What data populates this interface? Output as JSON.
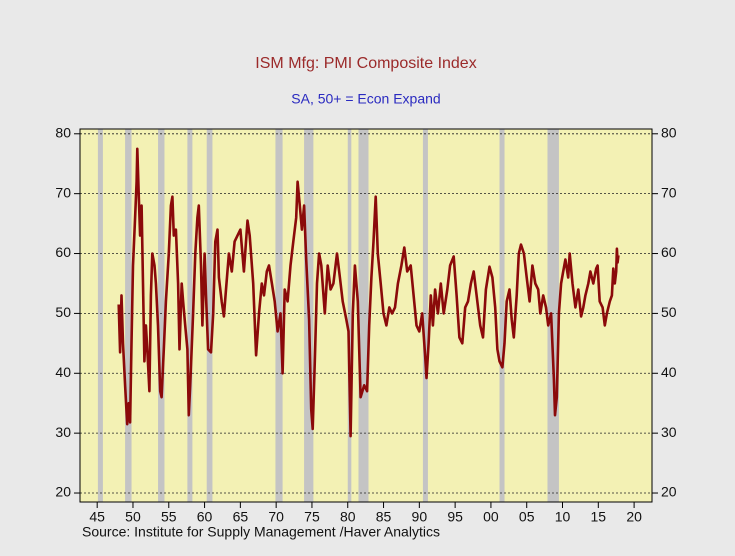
{
  "chart_data": {
    "type": "line",
    "title": "ISM Mfg: PMI Composite Index",
    "subtitle": "SA, 50+ = Econ Expand",
    "source": "Source:     Institute for Supply Management /Haver Analytics",
    "xlim": [
      1942.6,
      2022.5
    ],
    "ylim": [
      18.5,
      80.8
    ],
    "y2lim": [
      18.5,
      80.8
    ],
    "xticks": [
      {
        "value": 1945,
        "label": "45"
      },
      {
        "value": 1950,
        "label": "50"
      },
      {
        "value": 1955,
        "label": "55"
      },
      {
        "value": 1960,
        "label": "60"
      },
      {
        "value": 1965,
        "label": "65"
      },
      {
        "value": 1970,
        "label": "70"
      },
      {
        "value": 1975,
        "label": "75"
      },
      {
        "value": 1980,
        "label": "80"
      },
      {
        "value": 1985,
        "label": "85"
      },
      {
        "value": 1990,
        "label": "90"
      },
      {
        "value": 1995,
        "label": "95"
      },
      {
        "value": 2000,
        "label": "00"
      },
      {
        "value": 2005,
        "label": "05"
      },
      {
        "value": 2010,
        "label": "10"
      },
      {
        "value": 2015,
        "label": "15"
      },
      {
        "value": 2020,
        "label": "20"
      }
    ],
    "yticks": [
      20,
      30,
      40,
      50,
      60,
      70,
      80
    ],
    "y2ticks": [
      20,
      30,
      40,
      50,
      60,
      70,
      80
    ],
    "grid": true,
    "recession_color": "#c4c4c4",
    "recessions": [
      [
        1945.1,
        1945.8
      ],
      [
        1948.9,
        1949.8
      ],
      [
        1953.5,
        1954.4
      ],
      [
        1957.6,
        1958.3
      ],
      [
        1960.3,
        1961.1
      ],
      [
        1969.9,
        1970.9
      ],
      [
        1973.9,
        1975.2
      ],
      [
        1980.0,
        1980.5
      ],
      [
        1981.5,
        1982.9
      ],
      [
        1990.5,
        1991.2
      ],
      [
        2001.2,
        2001.9
      ],
      [
        2007.9,
        2009.5
      ]
    ],
    "series": [
      {
        "name": "PMI Composite Index",
        "color": "#8b0a0a",
        "x": [
          1948.0,
          1948.2,
          1948.4,
          1948.6,
          1948.9,
          1949.2,
          1949.4,
          1949.6,
          1949.8,
          1950.0,
          1950.3,
          1950.5,
          1950.6,
          1950.8,
          1951.0,
          1951.2,
          1951.4,
          1951.6,
          1951.8,
          1952.0,
          1952.3,
          1952.5,
          1952.7,
          1953.0,
          1953.2,
          1953.5,
          1953.8,
          1954.0,
          1954.3,
          1954.6,
          1955.0,
          1955.3,
          1955.5,
          1955.7,
          1956.0,
          1956.3,
          1956.5,
          1956.8,
          1957.0,
          1957.3,
          1957.6,
          1957.8,
          1958.0,
          1958.4,
          1958.7,
          1959.0,
          1959.2,
          1959.5,
          1959.7,
          1960.0,
          1960.2,
          1960.5,
          1960.9,
          1961.2,
          1961.5,
          1961.8,
          1962.0,
          1962.4,
          1962.7,
          1963.0,
          1963.4,
          1963.8,
          1964.2,
          1964.6,
          1965.0,
          1965.5,
          1966.0,
          1966.3,
          1966.8,
          1967.2,
          1967.6,
          1968.0,
          1968.3,
          1968.7,
          1969.0,
          1969.4,
          1969.8,
          1970.2,
          1970.6,
          1970.9,
          1971.2,
          1971.6,
          1972.0,
          1972.4,
          1972.8,
          1973.0,
          1973.3,
          1973.6,
          1973.9,
          1974.2,
          1974.6,
          1974.9,
          1975.1,
          1975.4,
          1975.7,
          1976.0,
          1976.3,
          1976.8,
          1977.2,
          1977.6,
          1978.0,
          1978.5,
          1978.9,
          1979.3,
          1979.8,
          1980.1,
          1980.4,
          1980.7,
          1981.0,
          1981.4,
          1981.8,
          1982.3,
          1982.7,
          1983.0,
          1983.3,
          1983.6,
          1983.9,
          1984.2,
          1984.6,
          1985.0,
          1985.4,
          1985.8,
          1986.2,
          1986.6,
          1987.0,
          1987.5,
          1987.9,
          1988.3,
          1988.8,
          1989.2,
          1989.6,
          1990.0,
          1990.4,
          1990.8,
          1991.0,
          1991.3,
          1991.6,
          1991.9,
          1992.2,
          1992.6,
          1993.0,
          1993.4,
          1993.9,
          1994.3,
          1994.8,
          1995.2,
          1995.6,
          1996.0,
          1996.4,
          1996.8,
          1997.2,
          1997.6,
          1998.0,
          1998.5,
          1998.9,
          1999.3,
          1999.8,
          2000.2,
          2000.6,
          2000.9,
          2001.2,
          2001.6,
          2001.9,
          2002.2,
          2002.6,
          2002.9,
          2003.2,
          2003.6,
          2003.9,
          2004.2,
          2004.6,
          2005.0,
          2005.4,
          2005.8,
          2006.2,
          2006.6,
          2006.9,
          2007.3,
          2007.7,
          2008.0,
          2008.4,
          2008.8,
          2008.95,
          2009.2,
          2009.5,
          2009.8,
          2010.1,
          2010.4,
          2010.8,
          2011.0,
          2011.4,
          2011.8,
          2012.2,
          2012.6,
          2012.9,
          2013.2,
          2013.6,
          2013.9,
          2014.3,
          2014.7,
          2014.9,
          2015.2,
          2015.6,
          2015.9,
          2016.2,
          2016.6,
          2016.9,
          2017.1,
          2017.3,
          2017.5,
          2017.6,
          2017.7,
          2017.8
        ],
        "values": [
          51.5,
          43.5,
          53,
          45,
          38,
          31.5,
          35,
          31.8,
          45,
          58,
          66,
          72,
          77.5,
          70,
          63,
          68,
          55,
          42,
          48,
          44,
          37,
          53,
          60,
          58,
          55,
          48,
          37,
          36,
          44,
          52,
          60,
          68,
          69.5,
          63,
          64,
          55,
          44,
          55,
          52,
          48,
          44,
          33,
          38,
          50,
          60,
          66,
          68,
          58,
          48,
          60,
          53,
          44,
          43.5,
          50,
          62,
          64,
          56,
          52,
          49.5,
          54,
          60,
          57,
          62,
          63,
          64,
          57,
          65.5,
          63,
          55,
          43,
          50,
          55,
          53,
          57,
          58,
          55,
          52,
          47,
          50,
          40,
          54,
          52,
          58,
          62,
          66,
          72,
          68,
          64,
          68,
          59,
          49,
          34,
          30.7,
          42,
          55,
          60,
          58,
          50,
          58,
          54,
          55,
          60,
          56,
          52,
          49,
          47,
          29.5,
          50,
          58,
          52,
          36,
          38,
          37,
          48,
          56,
          62,
          69.5,
          60,
          55,
          50,
          48,
          51,
          50,
          51,
          55,
          58,
          61,
          57,
          58,
          53,
          48,
          47,
          50,
          43,
          39.2,
          45,
          53,
          48,
          54,
          50,
          55,
          50,
          54,
          58,
          59.5,
          53,
          46,
          45,
          51,
          52,
          55,
          57,
          53,
          48,
          46,
          54,
          57.8,
          56,
          51,
          44,
          42,
          41,
          45,
          52,
          54,
          49,
          46,
          53,
          60,
          61.5,
          60,
          56,
          52,
          58,
          55,
          54,
          50,
          53,
          51,
          48,
          50,
          39,
          33,
          36,
          50,
          55,
          57,
          59,
          56,
          60,
          55,
          51,
          54,
          49.5,
          51,
          53,
          55,
          57,
          55,
          57.5,
          58,
          52,
          51,
          48,
          50,
          52,
          53,
          57.5,
          55,
          57,
          60.8,
          58.5,
          59.7
        ]
      }
    ]
  }
}
